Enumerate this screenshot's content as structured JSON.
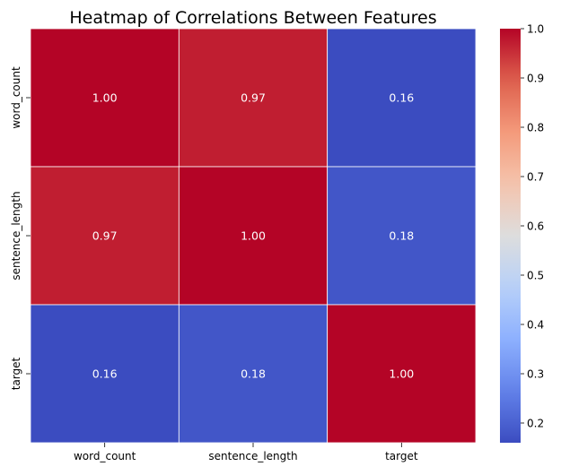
{
  "chart_data": {
    "type": "heatmap",
    "title": "Heatmap of Correlations Between Features",
    "xlabel": "",
    "ylabel": "",
    "x_categories": [
      "word_count",
      "sentence_length",
      "target"
    ],
    "y_categories": [
      "word_count",
      "sentence_length",
      "target"
    ],
    "values": [
      [
        1.0,
        0.97,
        0.16
      ],
      [
        0.97,
        1.0,
        0.18
      ],
      [
        0.16,
        0.18,
        1.0
      ]
    ],
    "value_labels": [
      [
        "1.00",
        "0.97",
        "0.16"
      ],
      [
        "0.97",
        "1.00",
        "0.18"
      ],
      [
        "0.16",
        "0.18",
        "1.00"
      ]
    ],
    "colormap": "coolwarm",
    "color_range": [
      0.16,
      1.0
    ],
    "colorbar_ticks": [
      "0.2",
      "0.3",
      "0.4",
      "0.5",
      "0.6",
      "0.7",
      "0.8",
      "0.9",
      "1.0"
    ],
    "colorbar_tick_values": [
      0.2,
      0.3,
      0.4,
      0.5,
      0.6,
      0.7,
      0.8,
      0.9,
      1.0
    ],
    "colorbar_position": "right",
    "grid": false,
    "cell_border_color": "#ffffff"
  }
}
